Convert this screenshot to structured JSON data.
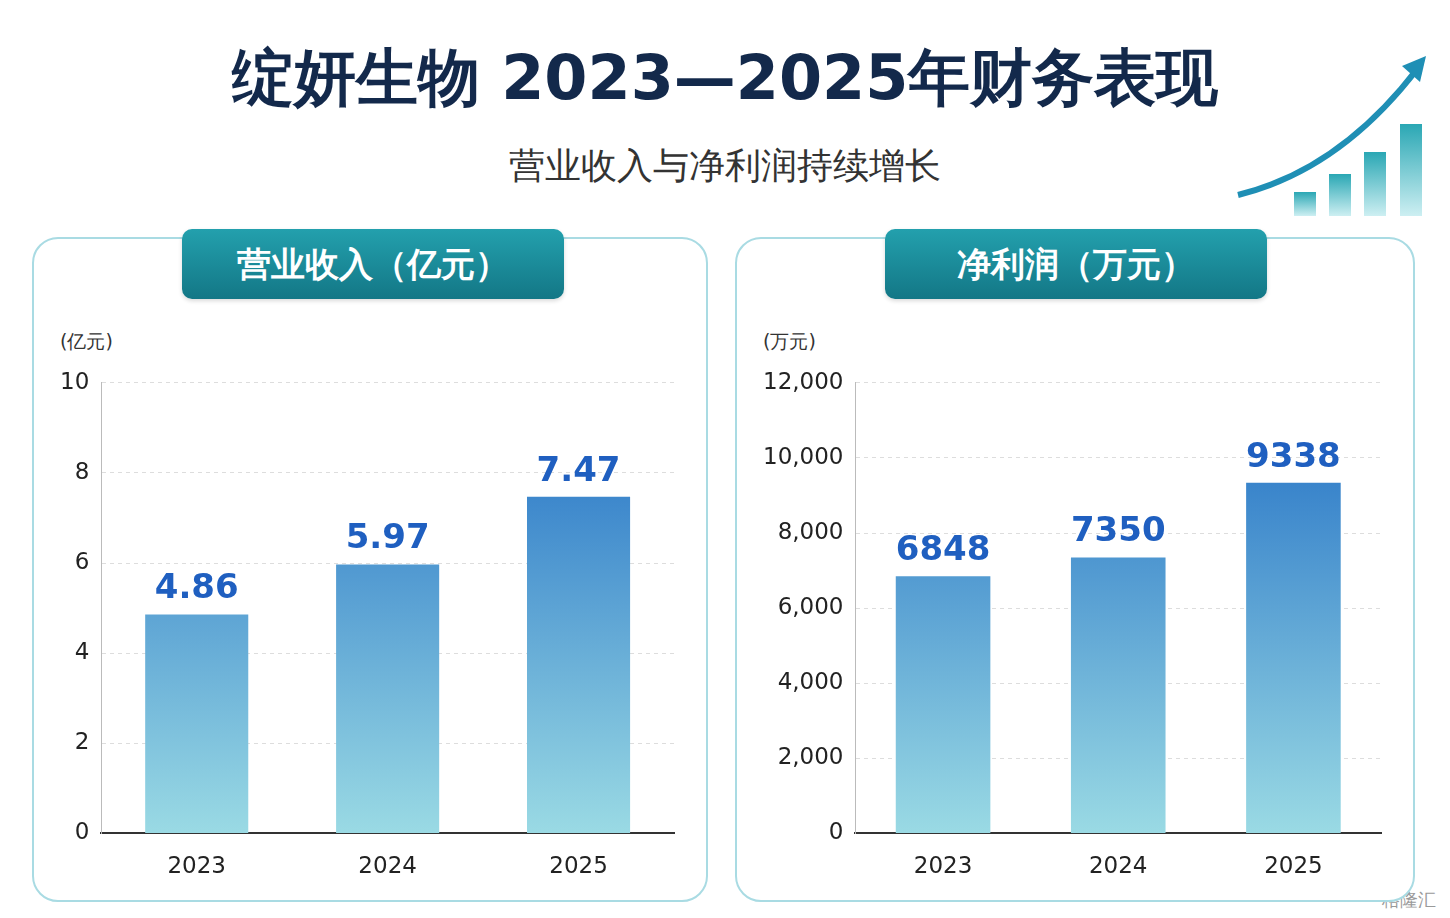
{
  "header": {
    "title": "绽妍生物 2023—2025年财务表现",
    "subtitle": "营业收入与净利润持续增长"
  },
  "watermark": "格隆汇",
  "chart_data": [
    {
      "type": "bar",
      "title": "营业收入（亿元）",
      "y_label": "(亿元)",
      "categories": [
        "2023",
        "2024",
        "2025"
      ],
      "values": [
        4.86,
        5.97,
        7.47
      ],
      "color": "#1e6cc4",
      "ylim": [
        0,
        10
      ],
      "yticks": [
        0,
        2,
        4,
        6,
        8,
        10
      ],
      "grid": true,
      "data_labels": true
    },
    {
      "type": "bar",
      "title": "净利润（万元）",
      "y_label": "(万元)",
      "categories": [
        "2023",
        "2024",
        "2025"
      ],
      "values": [
        6848,
        7350,
        9338
      ],
      "color": "#1e6cc4",
      "ylim": [
        0,
        12000
      ],
      "yticks": [
        0,
        {
          "value": 2000,
          "label": "2,000"
        },
        {
          "value": 4000,
          "label": "4,000"
        },
        {
          "value": 6000,
          "label": "6,000"
        },
        {
          "value": 8000,
          "label": "8,000"
        },
        {
          "value": 10000,
          "label": "10,000"
        },
        {
          "value": 12000,
          "label": "12,000"
        }
      ],
      "grid": true,
      "data_labels": true
    }
  ]
}
